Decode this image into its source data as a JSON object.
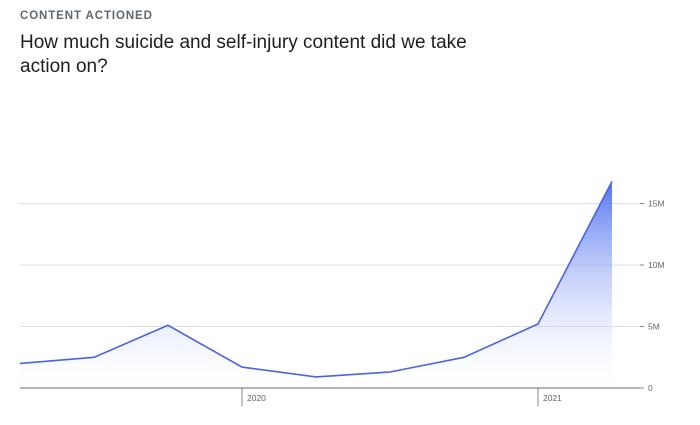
{
  "header": {
    "eyebrow": "CONTENT ACTIONED",
    "title": "How much suicide and self-injury content did we take action on?"
  },
  "colors": {
    "line": "#4b64e0",
    "fill_top": "#4a6cf0",
    "fill_bottom": "#ffffff",
    "grid": "#dddfe2",
    "axis": "#606770"
  },
  "chart_data": {
    "type": "area",
    "title": "How much suicide and self-injury content did we take action on?",
    "xlabel": "",
    "ylabel": "",
    "x": [
      "2019-Q2",
      "2019-Q3",
      "2019-Q4",
      "2020-Q1",
      "2020-Q2",
      "2020-Q3",
      "2020-Q4",
      "2021-Q1",
      "2021-Q2"
    ],
    "values": [
      2000000,
      2500000,
      5100000,
      1700000,
      900000,
      1300000,
      2500000,
      5200000,
      16800000
    ],
    "ylim": [
      0,
      15500000
    ],
    "y_ticks": [
      {
        "value": 0,
        "label": "0"
      },
      {
        "value": 5000000,
        "label": "5M"
      },
      {
        "value": 10000000,
        "label": "10M"
      },
      {
        "value": 15000000,
        "label": "15M"
      }
    ],
    "x_ticks": [
      {
        "at": "2020-Q1",
        "label": "2020"
      },
      {
        "at": "2021-Q1",
        "label": "2021"
      }
    ],
    "y_axis_side": "right",
    "grid": true,
    "legend": "none"
  }
}
